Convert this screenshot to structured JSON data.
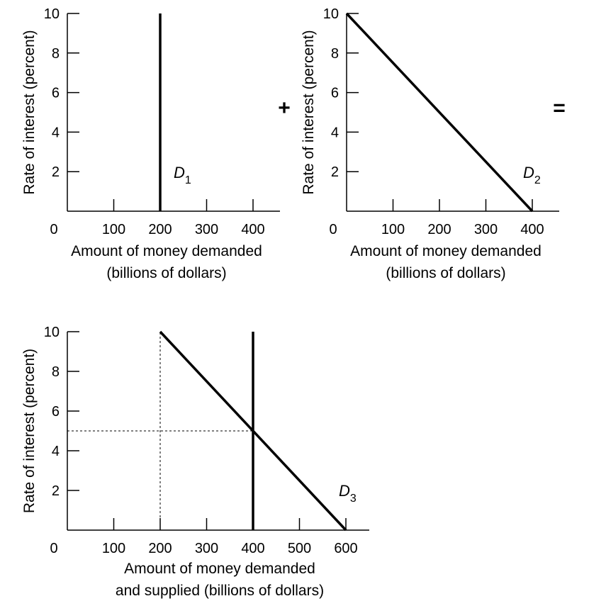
{
  "operators": {
    "plus": "+",
    "equals": "="
  },
  "chart_data": [
    {
      "type": "line",
      "xlabel": [
        "Amount of money demanded",
        "(billions of dollars)"
      ],
      "ylabel": "Rate of interest (percent)",
      "xlim": [
        0,
        450
      ],
      "ylim": [
        0,
        10
      ],
      "x_ticks": [
        0,
        100,
        200,
        300,
        400
      ],
      "y_ticks": [
        2,
        4,
        6,
        8,
        10
      ],
      "series": [
        {
          "name": "D",
          "subscript": "1",
          "x": [
            200,
            200
          ],
          "y": [
            0,
            10
          ],
          "label_at": [
            200,
            2
          ]
        }
      ]
    },
    {
      "type": "line",
      "xlabel": [
        "Amount of money demanded",
        "(billions of dollars)"
      ],
      "ylabel": "Rate of interest (percent)",
      "xlim": [
        0,
        450
      ],
      "ylim": [
        0,
        10
      ],
      "x_ticks": [
        0,
        100,
        200,
        300,
        400
      ],
      "y_ticks": [
        2,
        4,
        6,
        8,
        10
      ],
      "series": [
        {
          "name": "D",
          "subscript": "2",
          "x": [
            0,
            400
          ],
          "y": [
            10,
            0
          ],
          "label_at": [
            360,
            2
          ]
        }
      ]
    },
    {
      "type": "line",
      "xlabel": [
        "Amount of money demanded",
        "and supplied (billions of dollars)"
      ],
      "ylabel": "Rate of interest (percent)",
      "xlim": [
        0,
        650
      ],
      "ylim": [
        0,
        10
      ],
      "x_ticks": [
        0,
        100,
        200,
        300,
        400,
        500,
        600
      ],
      "y_ticks": [
        2,
        4,
        6,
        8,
        10
      ],
      "series": [
        {
          "name": "D",
          "subscript": "3",
          "x": [
            200,
            600
          ],
          "y": [
            10,
            0
          ],
          "label_at": [
            560,
            2
          ]
        },
        {
          "name": "",
          "subscript": "",
          "x": [
            400,
            400
          ],
          "y": [
            0,
            10
          ]
        }
      ],
      "reference_lines": [
        {
          "x": [
            0,
            400
          ],
          "y": [
            5,
            5
          ]
        },
        {
          "x": [
            200,
            200
          ],
          "y": [
            0,
            10
          ]
        }
      ]
    }
  ]
}
